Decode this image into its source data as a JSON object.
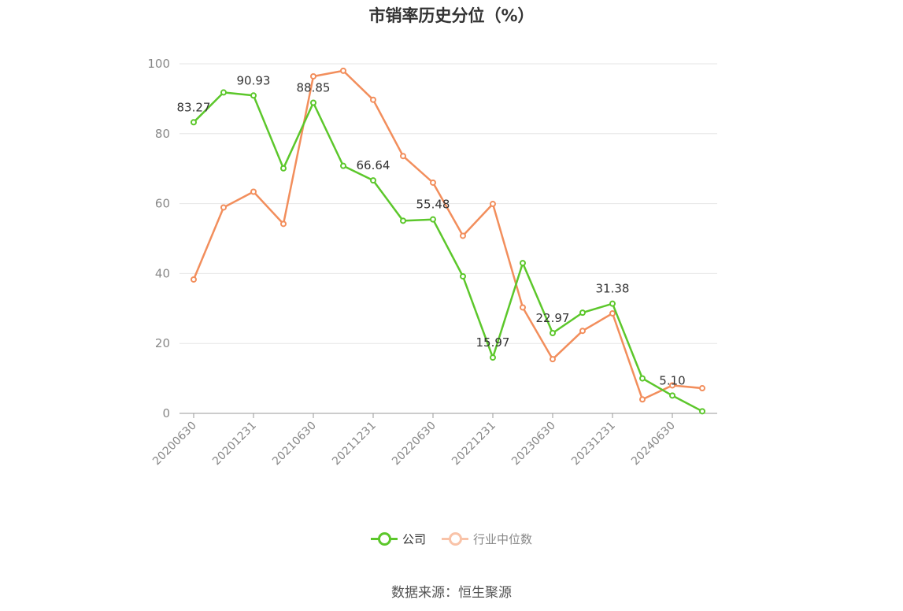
{
  "chart_data": {
    "type": "line",
    "title": "市销率历史分位（%）",
    "x": [
      "20200630",
      "20200930",
      "20201231",
      "20210331",
      "20210630",
      "20210930",
      "20211231",
      "20220331",
      "20220630",
      "20220930",
      "20221231",
      "20230331",
      "20230630",
      "20230930",
      "20231231",
      "20240331",
      "20240630",
      "20240930"
    ],
    "x_tick_labels": [
      "20200630",
      "20201231",
      "20210630",
      "20211231",
      "20220630",
      "20221231",
      "20230630",
      "20231231",
      "20240630"
    ],
    "ylim": [
      0,
      100
    ],
    "y_ticks": [
      0,
      20,
      40,
      60,
      80,
      100
    ],
    "grid": true,
    "legend_position": "bottom-center",
    "series": [
      {
        "name": "公司",
        "color": "#5cc72b",
        "values": [
          83.27,
          91.8,
          90.93,
          70.1,
          88.85,
          70.8,
          66.64,
          55.1,
          55.48,
          39.2,
          15.97,
          43.0,
          22.97,
          28.8,
          31.38,
          10.0,
          5.1,
          0.6
        ],
        "labels": [
          "83.27",
          null,
          "90.93",
          null,
          "88.85",
          null,
          "66.64",
          null,
          "55.48",
          null,
          "15.97",
          null,
          "22.97",
          null,
          "31.38",
          null,
          "5.10",
          null
        ]
      },
      {
        "name": "行业中位数",
        "color": "#f28e5c",
        "values": [
          38.3,
          58.9,
          63.4,
          54.2,
          96.4,
          98.0,
          89.7,
          73.6,
          66.0,
          50.8,
          59.9,
          30.3,
          15.5,
          23.6,
          28.6,
          4.0,
          8.0,
          7.2
        ]
      }
    ]
  },
  "source_text": "数据来源：恒生聚源",
  "legend": {
    "company": "公司",
    "industry": "行业中位数"
  }
}
